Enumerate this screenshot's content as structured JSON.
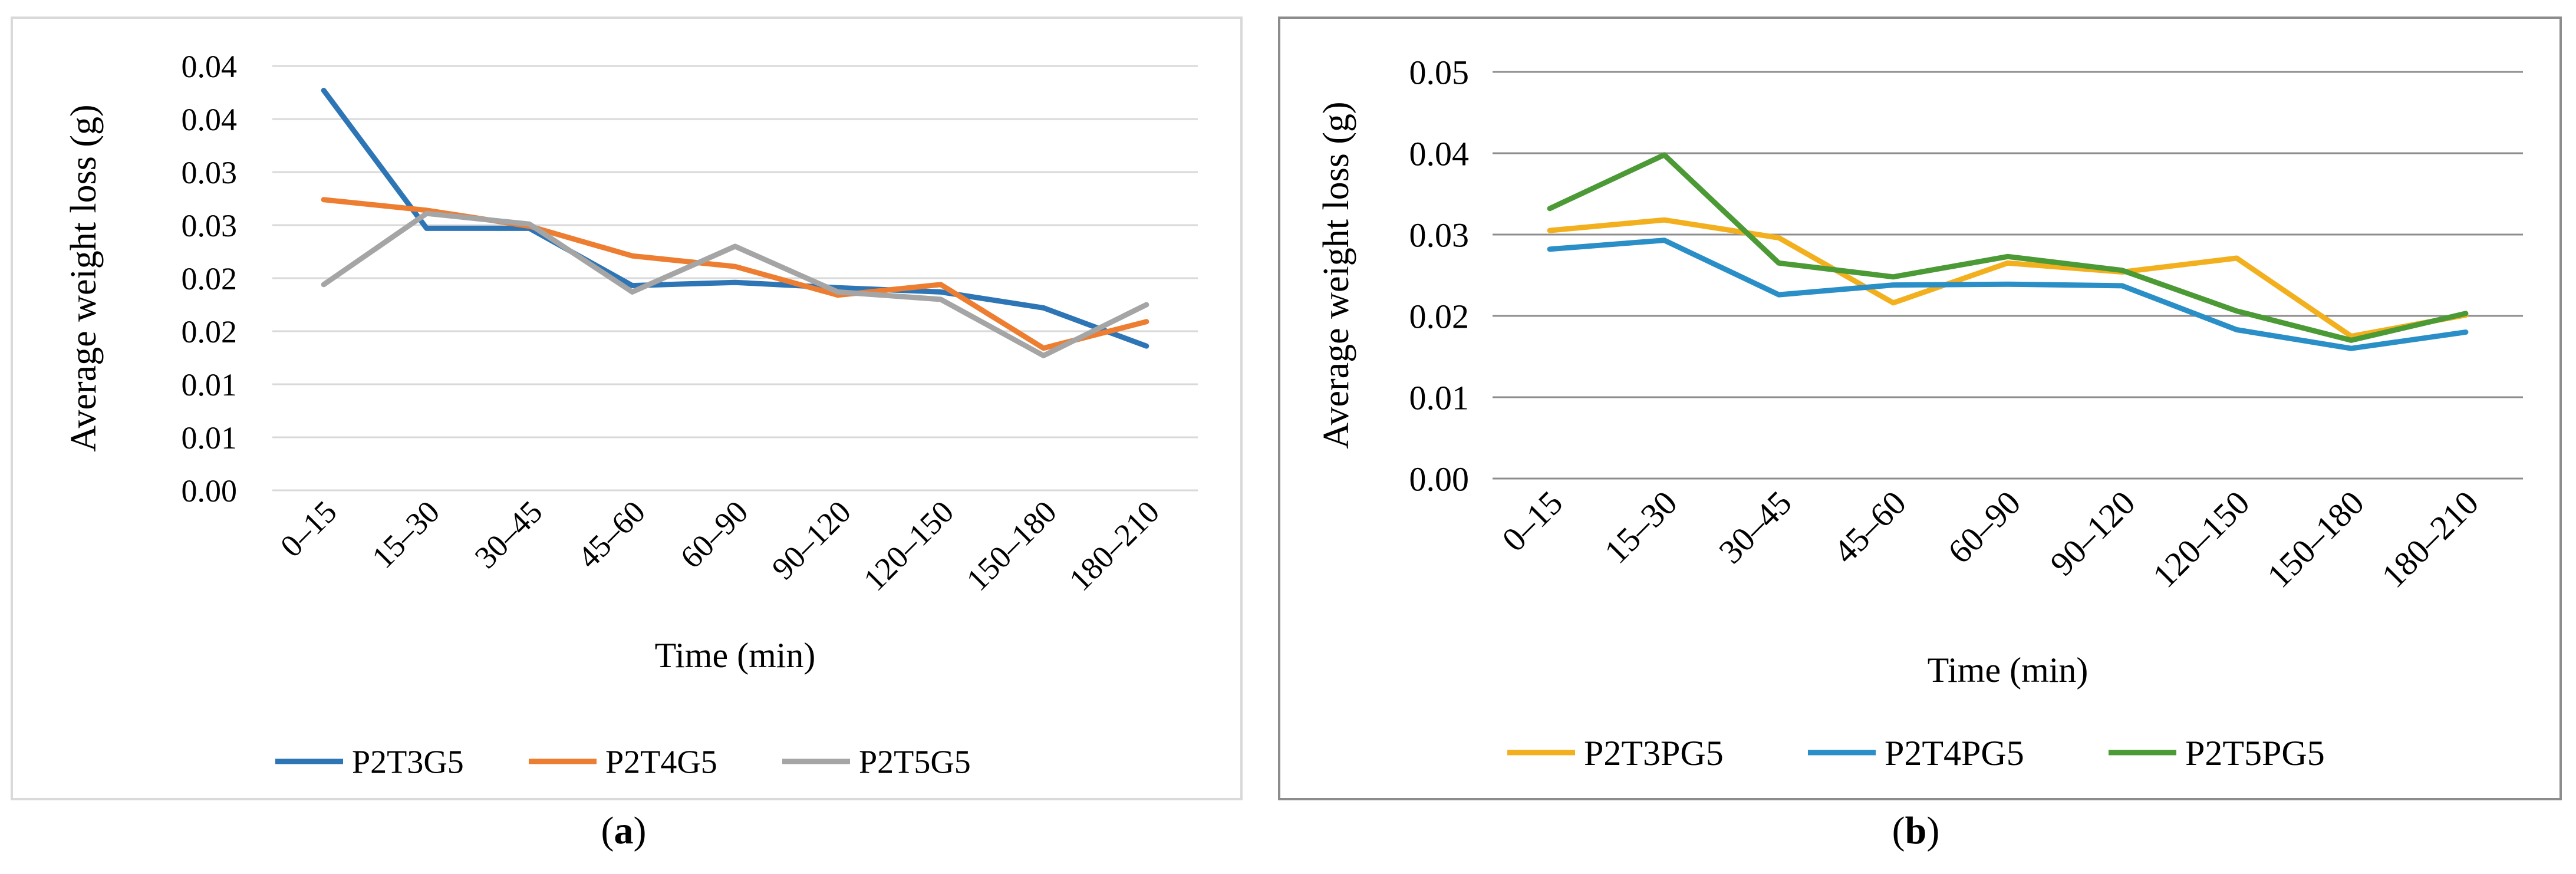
{
  "captions": {
    "a_open": "(",
    "a_letter": "a",
    "a_close": ")",
    "b_open": "(",
    "b_letter": "b",
    "b_close": ")"
  },
  "chart_data": [
    {
      "type": "line",
      "panel": "a",
      "title": "",
      "xlabel": "Time (min)",
      "ylabel": "Average weight loss (g)",
      "categories": [
        "0–15",
        "15–30",
        "30–45",
        "45–60",
        "60–90",
        "90–120",
        "120–150",
        "150–180",
        "180–210"
      ],
      "ylim": [
        0,
        0.04
      ],
      "yticks": [
        0,
        0.005,
        0.01,
        0.015,
        0.02,
        0.025,
        0.03,
        0.035,
        0.04
      ],
      "ytick_labels": [
        "0.00",
        "0.01",
        "0.01",
        "0.02",
        "0.02",
        "0.03",
        "0.03",
        "0.04",
        "0.04"
      ],
      "grid": true,
      "legend_position": "bottom",
      "series": [
        {
          "name": "P2T3G5",
          "color": "#2e75b6",
          "values": [
            0.0377,
            0.0247,
            0.0247,
            0.0193,
            0.0196,
            0.0191,
            0.0187,
            0.0172,
            0.0136
          ]
        },
        {
          "name": "P2T4G5",
          "color": "#ed7d31",
          "values": [
            0.0274,
            0.0264,
            0.0249,
            0.0221,
            0.0211,
            0.0184,
            0.0194,
            0.0134,
            0.0159
          ]
        },
        {
          "name": "P2T5G5",
          "color": "#a5a5a5",
          "values": [
            0.0194,
            0.0261,
            0.0251,
            0.0187,
            0.023,
            0.0187,
            0.018,
            0.0127,
            0.0175
          ]
        }
      ]
    },
    {
      "type": "line",
      "panel": "b",
      "title": "",
      "xlabel": "Time (min)",
      "ylabel": "Average weight loss (g)",
      "categories": [
        "0–15",
        "15–30",
        "30–45",
        "45–60",
        "60–90",
        "90–120",
        "120–150",
        "150–180",
        "180–210"
      ],
      "ylim": [
        0,
        0.05
      ],
      "yticks": [
        0,
        0.01,
        0.02,
        0.03,
        0.04,
        0.05
      ],
      "ytick_labels": [
        "0.00",
        "0.01",
        "0.02",
        "0.03",
        "0.04",
        "0.05"
      ],
      "grid": true,
      "legend_position": "bottom",
      "series": [
        {
          "name": "P2T3PG5",
          "color": "#f2b01e",
          "values": [
            0.0305,
            0.0318,
            0.0296,
            0.0216,
            0.0265,
            0.0254,
            0.0271,
            0.0175,
            0.0201
          ]
        },
        {
          "name": "P2T4PG5",
          "color": "#2a8ec7",
          "values": [
            0.0282,
            0.0293,
            0.0226,
            0.0238,
            0.0239,
            0.0237,
            0.0183,
            0.016,
            0.018
          ]
        },
        {
          "name": "P2T5PG5",
          "color": "#4b9a35",
          "values": [
            0.0332,
            0.0398,
            0.0265,
            0.0248,
            0.0273,
            0.0256,
            0.0206,
            0.017,
            0.0203
          ]
        }
      ]
    }
  ]
}
